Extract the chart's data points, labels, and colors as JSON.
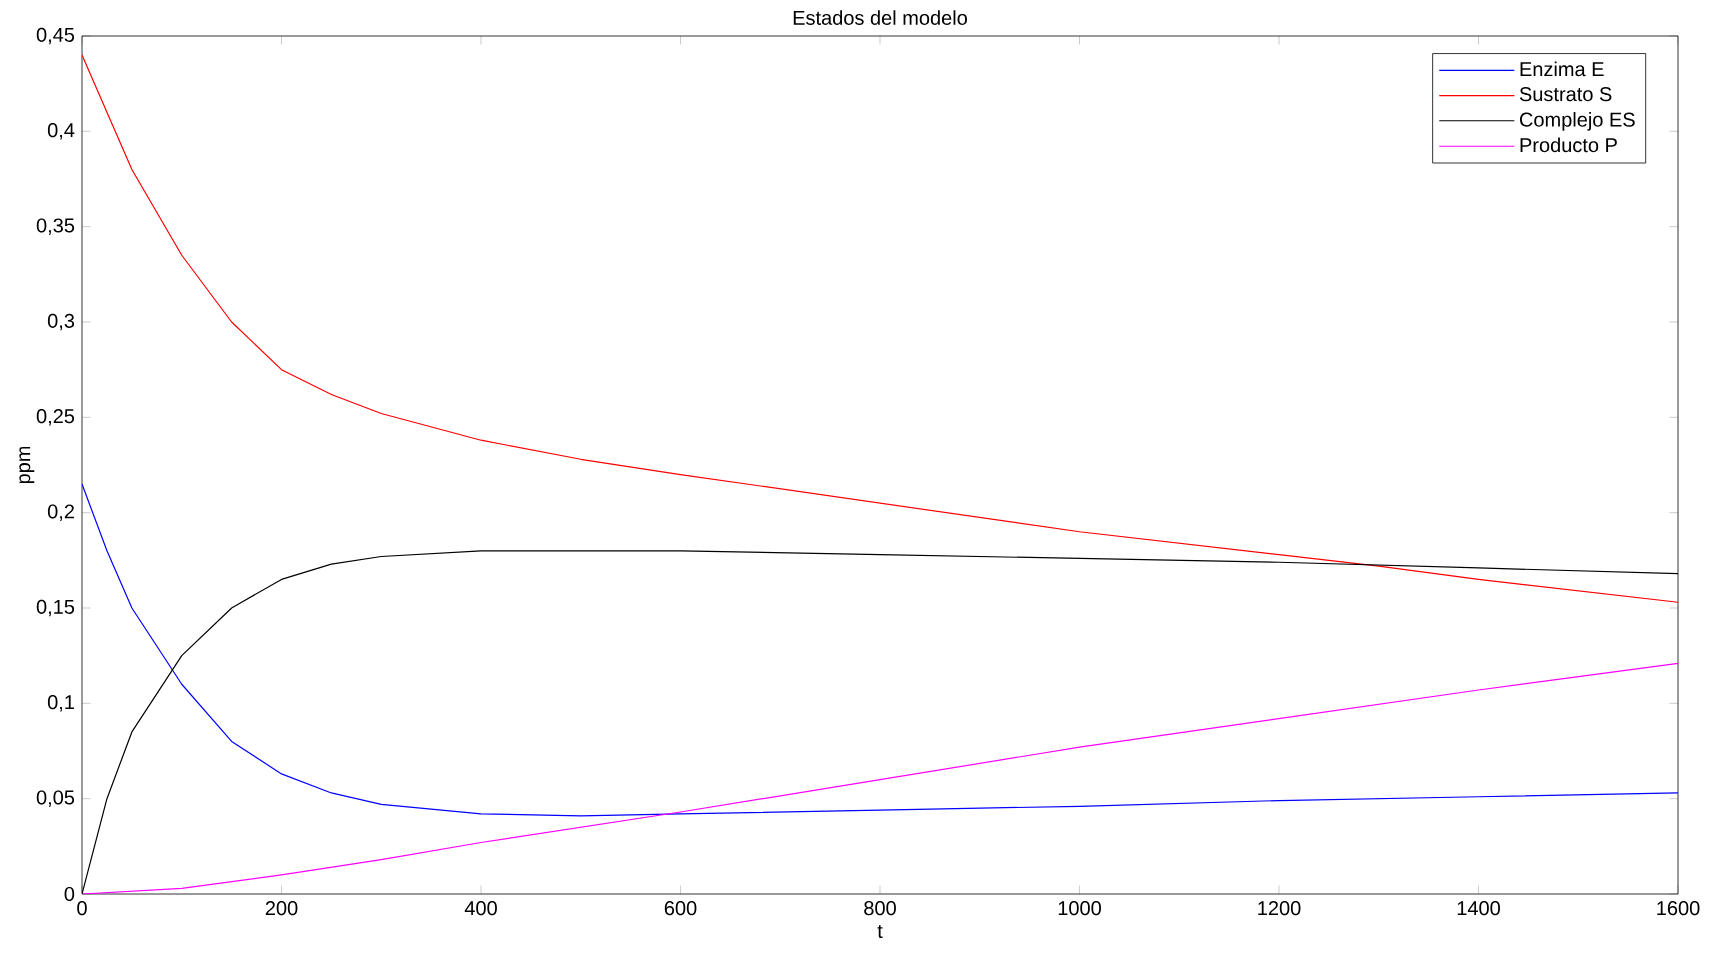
{
  "chart_data": {
    "type": "line",
    "title": "Estados del modelo",
    "xlabel": "t",
    "ylabel": "ppm",
    "xlim": [
      0,
      1600
    ],
    "xticks": [
      0,
      200,
      400,
      600,
      800,
      1000,
      1200,
      1400,
      1600
    ],
    "ylim": [
      0,
      0.45
    ],
    "yticks": [
      0,
      {
        "value": 0.05,
        "label": "0,05"
      },
      {
        "value": 0.1,
        "label": "0,1"
      },
      {
        "value": 0.15,
        "label": "0,15"
      },
      {
        "value": 0.2,
        "label": "0,2"
      },
      {
        "value": 0.25,
        "label": "0,25"
      },
      {
        "value": 0.3,
        "label": "0,3"
      },
      {
        "value": 0.35,
        "label": "0,35"
      },
      {
        "value": 0.4,
        "label": "0,4"
      },
      {
        "value": 0.45,
        "label": "0,45"
      }
    ],
    "legend": "top right",
    "grid": false,
    "series": [
      {
        "name": "Enzima E",
        "color": "#0000ff",
        "x": [
          0,
          25,
          50,
          100,
          150,
          200,
          250,
          300,
          400,
          500,
          600,
          800,
          1000,
          1200,
          1400,
          1600
        ],
        "values": [
          0.215,
          0.18,
          0.15,
          0.11,
          0.08,
          0.063,
          0.053,
          0.047,
          0.042,
          0.041,
          0.042,
          0.044,
          0.046,
          0.049,
          0.051,
          0.053
        ]
      },
      {
        "name": "Sustrato S",
        "color": "#ff0000",
        "x": [
          0,
          25,
          50,
          100,
          150,
          200,
          250,
          300,
          400,
          500,
          600,
          800,
          1000,
          1200,
          1300,
          1400,
          1600
        ],
        "values": [
          0.44,
          0.41,
          0.38,
          0.335,
          0.3,
          0.275,
          0.262,
          0.252,
          0.238,
          0.228,
          0.22,
          0.205,
          0.19,
          0.178,
          0.172,
          0.165,
          0.153
        ]
      },
      {
        "name": "Complejo ES",
        "color": "#000000",
        "x": [
          0,
          25,
          50,
          100,
          150,
          200,
          250,
          300,
          400,
          600,
          800,
          1000,
          1200,
          1400,
          1600
        ],
        "values": [
          0,
          0.05,
          0.085,
          0.125,
          0.15,
          0.165,
          0.173,
          0.177,
          0.18,
          0.18,
          0.178,
          0.176,
          0.174,
          0.171,
          0.168
        ]
      },
      {
        "name": "Producto P",
        "color": "#ff00ff",
        "x": [
          0,
          100,
          200,
          300,
          400,
          600,
          800,
          1000,
          1200,
          1400,
          1600
        ],
        "values": [
          0,
          0.003,
          0.01,
          0.018,
          0.027,
          0.043,
          0.06,
          0.077,
          0.092,
          0.107,
          0.121
        ]
      }
    ]
  }
}
